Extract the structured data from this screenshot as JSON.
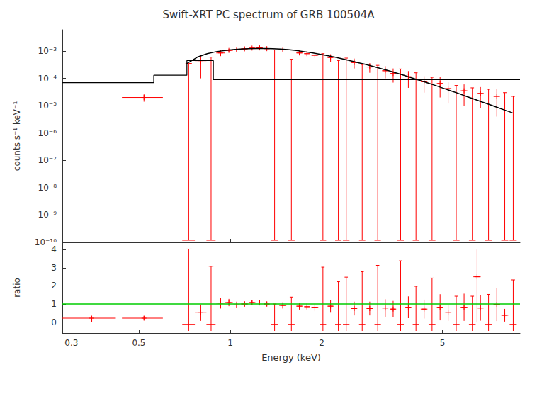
{
  "chart_data": [
    {
      "type": "scatter",
      "title": "Swift-XRT PC spectrum of GRB 100504A",
      "ylabel": "counts s⁻¹ keV⁻¹",
      "log": true,
      "grid": false,
      "tick_labels": "y",
      "xlim": [
        0.28,
        9.0
      ],
      "ylim": [
        1e-10,
        0.006
      ],
      "xticks": [
        1
      ],
      "yticks": [
        {
          "value": 1e-10,
          "label": "10⁻¹⁰"
        },
        {
          "value": 1e-09,
          "label": "10⁻⁹"
        },
        {
          "value": 1e-08,
          "label": "10⁻⁸"
        },
        {
          "value": 1e-07,
          "label": "10⁻⁷"
        },
        {
          "value": 1e-06,
          "label": "10⁻⁶"
        },
        {
          "value": 1e-05,
          "label": "10⁻⁵"
        },
        {
          "value": 0.0001,
          "label": "10⁻⁴"
        },
        {
          "value": 0.001,
          "label": "10⁻³"
        }
      ],
      "series": [
        {
          "type": "step",
          "color": "#000000",
          "bins": [
            0.28,
            0.42,
            0.56,
            0.72,
            0.88,
            9.0
          ],
          "values": [
            7e-05,
            7e-05,
            0.00013,
            0.00045,
            9e-05
          ]
        },
        {
          "type": "line",
          "color": "#000000",
          "x": [
            0.72,
            0.78,
            0.84,
            0.9,
            0.96,
            1.02,
            1.08,
            1.15,
            1.22,
            1.3,
            1.38,
            1.46,
            1.55,
            1.65,
            1.75,
            1.86,
            1.97,
            2.09,
            2.22,
            2.35,
            2.49,
            2.64,
            2.8,
            2.97,
            3.15,
            3.34,
            3.54,
            3.75,
            3.97,
            4.21,
            4.47,
            4.74,
            5.02,
            5.33,
            5.65,
            5.99,
            6.35,
            6.73,
            7.14,
            7.57,
            8.02,
            8.5
          ],
          "values": [
            0.00035,
            0.0006,
            0.0008,
            0.00095,
            0.00105,
            0.00112,
            0.00118,
            0.00122,
            0.00124,
            0.00124,
            0.00122,
            0.00118,
            0.00112,
            0.00104,
            0.00095,
            0.00086,
            0.00077,
            0.00068,
            0.00059,
            0.00051,
            0.00044,
            0.000375,
            0.00032,
            0.00027,
            0.000225,
            0.000188,
            0.000155,
            0.000127,
            0.000103,
            8.4e-05,
            6.8e-05,
            5.5e-05,
            4.4e-05,
            3.5e-05,
            2.8e-05,
            2.2e-05,
            1.75e-05,
            1.38e-05,
            1.1e-05,
            8.7e-06,
            6.9e-06,
            5.5e-06
          ]
        },
        {
          "type": "scatter",
          "color": "#ff0000",
          "marker": "plus",
          "x": [
            0.52,
            0.8,
            0.93,
            0.99,
            1.05,
            1.115,
            1.18,
            1.25,
            1.32,
            1.49,
            1.69,
            1.79,
            1.9,
            2.14,
            2.56,
            2.88,
            3.24,
            3.44,
            3.86,
            4.35,
            4.91,
            5.22,
            5.89,
            6.67,
            7.55
          ],
          "values": [
            2e-05,
            0.0004,
            0.00085,
            0.00105,
            0.0011,
            0.0012,
            0.00128,
            0.0013,
            0.00122,
            0.0011,
            0.00085,
            0.0008,
            0.0007,
            0.00058,
            0.00038,
            0.00026,
            0.00019,
            0.00015,
            0.000115,
            7.5e-05,
            6.5e-05,
            4.2e-05,
            3.5e-05,
            2.8e-05,
            2.2e-05
          ],
          "xerr": [
            0.08,
            0.035,
            0.03,
            0.03,
            0.03,
            0.03,
            0.03,
            0.03,
            0.03,
            0.04,
            0.04,
            0.04,
            0.05,
            0.05,
            0.06,
            0.07,
            0.08,
            0.08,
            0.09,
            0.11,
            0.12,
            0.13,
            0.15,
            0.17,
            0.19
          ],
          "yerr_lo": [
            6e-06,
            0.0003,
            0.0002,
            0.00015,
            0.00015,
            0.00013,
            0.00013,
            0.00013,
            0.00013,
            0.00015,
            0.00015,
            0.00015,
            0.00015,
            0.00018,
            0.00015,
            0.0001,
            9e-05,
            8e-05,
            7e-05,
            4.5e-05,
            4.5e-05,
            3e-05,
            2.5e-05,
            2e-05,
            1.8e-05
          ],
          "yerr_hi": [
            6e-06,
            0.0003,
            0.0002,
            0.00015,
            0.00015,
            0.00013,
            0.00013,
            0.00013,
            0.00013,
            0.00015,
            0.00015,
            0.00015,
            0.00015,
            0.00018,
            0.00015,
            0.0001,
            9e-05,
            8e-05,
            7e-05,
            4.5e-05,
            4.5e-05,
            3e-05,
            2.5e-05,
            2e-05,
            1.8e-05
          ]
        },
        {
          "type": "upper_limit",
          "color": "#ff0000",
          "x": [
            0.73,
            0.865,
            1.4,
            1.59,
            2.02,
            2.27,
            2.41,
            2.72,
            3.06,
            3.64,
            4.09,
            4.62,
            5.55,
            6.27,
            7.09,
            8.02,
            8.55
          ],
          "values": [
            0.00035,
            0.0006,
            0.0011,
            0.0005,
            0.0008,
            0.00045,
            0.00055,
            0.00032,
            0.0003,
            0.00022,
            0.00016,
            0.00011,
            5.5e-05,
            4.5e-05,
            4e-05,
            3e-05,
            2.2e-05
          ],
          "xerr": [
            0.035,
            0.03,
            0.04,
            0.04,
            0.05,
            0.055,
            0.06,
            0.065,
            0.075,
            0.09,
            0.1,
            0.12,
            0.14,
            0.16,
            0.18,
            0.21,
            0.23
          ]
        }
      ]
    },
    {
      "type": "scatter",
      "xlabel": "Energy (keV)",
      "ylabel": "ratio",
      "log": "x",
      "grid": false,
      "xlim": [
        0.28,
        9.0
      ],
      "ylim": [
        -0.6,
        4.4
      ],
      "xticks": [
        0.3,
        0.5,
        1,
        2,
        5
      ],
      "yticks": [
        0,
        1,
        2,
        3,
        4
      ],
      "series": [
        {
          "type": "hline",
          "color": "#00cc00",
          "values": [
            1.0
          ]
        },
        {
          "type": "scatter",
          "color": "#ff0000",
          "marker": "plus",
          "x": [
            0.35,
            0.52,
            0.8,
            0.93,
            0.99,
            1.05,
            1.115,
            1.18,
            1.25,
            1.32,
            1.49,
            1.69,
            1.79,
            1.9,
            2.14,
            2.56,
            2.88,
            3.24,
            3.44,
            3.86,
            4.35,
            4.91,
            5.22,
            5.89,
            6.67,
            7.55,
            8.02,
            6.5
          ],
          "values": [
            0.22,
            0.22,
            0.52,
            1.05,
            1.08,
            0.95,
            1.0,
            1.08,
            1.06,
            1.0,
            0.92,
            0.88,
            0.85,
            0.82,
            0.88,
            0.75,
            0.75,
            0.78,
            0.72,
            0.82,
            0.72,
            0.82,
            0.52,
            0.82,
            0.78,
            0.98,
            0.38,
            2.5
          ],
          "xerr": [
            0.07,
            0.08,
            0.035,
            0.03,
            0.03,
            0.03,
            0.03,
            0.03,
            0.03,
            0.03,
            0.04,
            0.04,
            0.04,
            0.05,
            0.05,
            0.06,
            0.07,
            0.08,
            0.08,
            0.09,
            0.11,
            0.12,
            0.13,
            0.15,
            0.17,
            0.19,
            0.21,
            0.18
          ],
          "yerr_lo": [
            0.22,
            0.12,
            0.45,
            0.3,
            0.2,
            0.18,
            0.15,
            0.15,
            0.14,
            0.14,
            0.18,
            0.2,
            0.2,
            0.22,
            0.32,
            0.38,
            0.38,
            0.48,
            0.45,
            0.6,
            0.52,
            0.72,
            0.45,
            0.75,
            0.7,
            0.92,
            0.35,
            2.5
          ],
          "yerr_hi": [
            0.0,
            0.12,
            0.45,
            0.3,
            0.2,
            0.18,
            0.15,
            0.15,
            0.14,
            0.14,
            0.18,
            0.2,
            0.2,
            0.22,
            0.32,
            0.38,
            0.38,
            0.48,
            0.45,
            0.6,
            0.52,
            0.72,
            0.45,
            0.75,
            0.7,
            0.92,
            0.35,
            1.5
          ]
        },
        {
          "type": "upper_limit",
          "color": "#ff0000",
          "x": [
            0.73,
            0.865,
            1.4,
            1.59,
            2.02,
            2.27,
            2.41,
            2.72,
            3.06,
            3.64,
            4.09,
            4.62,
            5.55,
            6.27,
            7.09,
            8.55
          ],
          "values": [
            -0.12,
            -0.12,
            -0.12,
            -0.12,
            -0.12,
            -0.12,
            -0.12,
            -0.12,
            -0.12,
            -0.12,
            -0.12,
            -0.12,
            -0.12,
            -0.12,
            -0.12,
            -0.12
          ],
          "xerr": [
            0.035,
            0.03,
            0.04,
            0.04,
            0.05,
            0.055,
            0.06,
            0.065,
            0.075,
            0.09,
            0.1,
            0.12,
            0.14,
            0.16,
            0.18,
            0.23
          ],
          "yerr_hi": [
            4.15,
            3.2,
            1.12,
            1.5,
            3.15,
            2.35,
            2.6,
            2.9,
            3.25,
            3.5,
            2.1,
            2.55,
            1.55,
            1.55,
            1.65,
            2.45
          ]
        }
      ]
    }
  ]
}
